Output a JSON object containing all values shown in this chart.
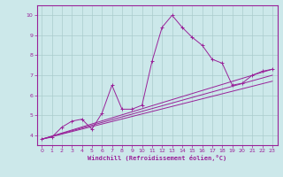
{
  "xlabel": "Windchill (Refroidissement éolien,°C)",
  "bg_color": "#cce8ea",
  "grid_color": "#aacccc",
  "line_color": "#992299",
  "xlim": [
    -0.5,
    23.5
  ],
  "ylim": [
    3.5,
    10.5
  ],
  "xticks": [
    0,
    1,
    2,
    3,
    4,
    5,
    6,
    7,
    8,
    9,
    10,
    11,
    12,
    13,
    14,
    15,
    16,
    17,
    18,
    19,
    20,
    21,
    22,
    23
  ],
  "yticks": [
    4,
    5,
    6,
    7,
    8,
    9,
    10
  ],
  "series_main": {
    "x": [
      0,
      1,
      2,
      3,
      4,
      5,
      6,
      7,
      8,
      9,
      10,
      11,
      12,
      13,
      14,
      15,
      16,
      17,
      18,
      19,
      20,
      21,
      22,
      23
    ],
    "y": [
      3.8,
      3.9,
      4.4,
      4.7,
      4.8,
      4.3,
      5.1,
      6.5,
      5.3,
      5.3,
      5.5,
      7.7,
      9.4,
      10.0,
      9.4,
      8.9,
      8.5,
      7.8,
      7.6,
      6.5,
      6.6,
      7.0,
      7.2,
      7.3
    ]
  },
  "series_lines": [
    {
      "x": [
        0,
        23
      ],
      "y": [
        3.8,
        7.3
      ]
    },
    {
      "x": [
        0,
        23
      ],
      "y": [
        3.8,
        7.0
      ]
    },
    {
      "x": [
        0,
        23
      ],
      "y": [
        3.8,
        6.7
      ]
    }
  ]
}
